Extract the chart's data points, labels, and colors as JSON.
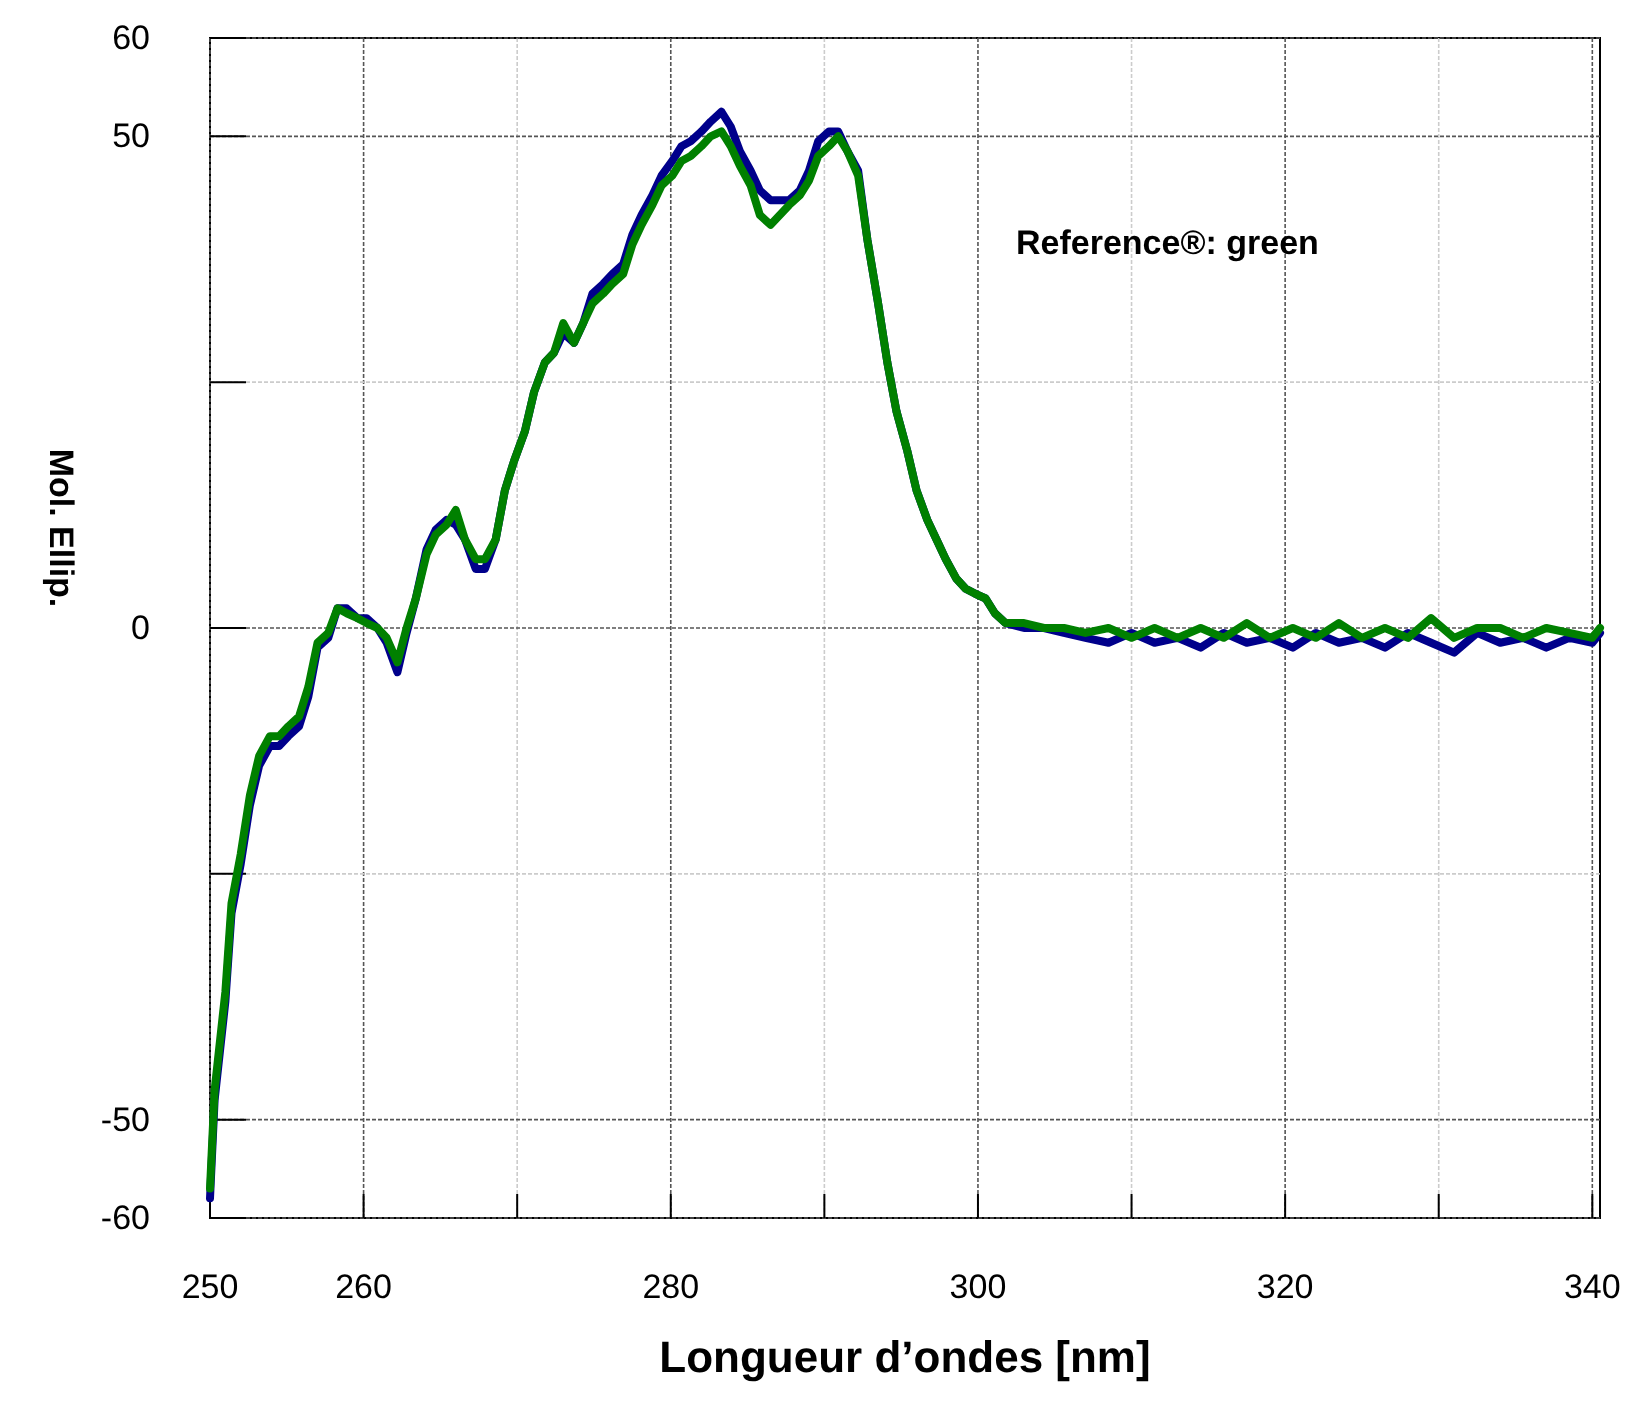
{
  "chart_data": {
    "type": "line",
    "xlabel": "Longueur d’ondes [nm]",
    "ylabel": "Mol. Ellip.",
    "annotations": [
      "Reference®: green"
    ],
    "xlim": [
      250,
      340.5
    ],
    "ylim": [
      -60,
      60
    ],
    "xticks": [
      250,
      260,
      {
        "value": 270,
        "label": null
      },
      280,
      {
        "value": 290,
        "label": null
      },
      300,
      {
        "value": 310,
        "label": null
      },
      320,
      {
        "value": 330,
        "label": null
      },
      340
    ],
    "yticks": [
      -60,
      -50,
      {
        "value": -25,
        "label": null
      },
      0,
      {
        "value": 25,
        "label": null
      },
      50,
      60
    ],
    "grid": true,
    "line_style": "solid",
    "marker": "none",
    "x": [
      250,
      250.3,
      251,
      251.4,
      252,
      252.6,
      253.2,
      253.9,
      254.5,
      255.1,
      255.8,
      256.4,
      257,
      257.7,
      258.3,
      258.9,
      259.6,
      260.2,
      260.9,
      261.5,
      262.2,
      262.8,
      263.4,
      264.1,
      264.7,
      265.4,
      266,
      266.6,
      267.3,
      267.9,
      268.6,
      269.2,
      269.8,
      270.5,
      271.1,
      271.8,
      272.4,
      273,
      273.7,
      274.3,
      274.9,
      275.6,
      276.2,
      276.9,
      277.5,
      278.1,
      278.8,
      279.4,
      280.1,
      280.7,
      281.3,
      282,
      282.6,
      283.3,
      283.9,
      284.5,
      285.2,
      285.8,
      286.5,
      287.1,
      287.7,
      288.4,
      289,
      289.6,
      290.3,
      290.9,
      291.5,
      292.2,
      292.8,
      293.5,
      294.1,
      294.7,
      295.4,
      296,
      296.7,
      297.3,
      297.9,
      298.6,
      299.2,
      299.8,
      300.5,
      301.1,
      301.8,
      303,
      304.3,
      305.6,
      307,
      308.5,
      310,
      311.5,
      313,
      314.5,
      316,
      317.5,
      319,
      320.5,
      322,
      323.5,
      325,
      326.5,
      328,
      329.5,
      331,
      332.5,
      334,
      335.5,
      337,
      338.5,
      340,
      340.5
    ],
    "series": [
      {
        "color": "#00008b",
        "values": [
          -58,
          -48,
          -38,
          -29,
          -24,
          -18,
          -14,
          -12,
          -12,
          -11,
          -10,
          -7,
          -2,
          -1,
          2,
          2,
          1,
          1,
          0,
          -1.5,
          -4.5,
          -0.5,
          3,
          8,
          10,
          11,
          10.5,
          9,
          6,
          6,
          9,
          14,
          17,
          20,
          24,
          27,
          28,
          30,
          29,
          31,
          34,
          35,
          36,
          37,
          40,
          42,
          44,
          46,
          47.5,
          49,
          49.5,
          50.5,
          51.5,
          52.5,
          51,
          48.5,
          46.5,
          44.5,
          43.5,
          43.5,
          43.5,
          44.5,
          46.5,
          49.5,
          50.5,
          50.5,
          48.5,
          46.5,
          39.5,
          33,
          27,
          22,
          18,
          14,
          11,
          9,
          7,
          5,
          4,
          3.5,
          3,
          1.5,
          0.5,
          0,
          0,
          -0.5,
          -1,
          -1.5,
          -0.5,
          -1.5,
          -1,
          -2,
          -0.5,
          -1.5,
          -1,
          -2,
          -0.5,
          -1.5,
          -1,
          -2,
          -0.5,
          -1.5,
          -2.5,
          -0.5,
          -1.5,
          -1,
          -2,
          -1,
          -1.5,
          -0.5
        ]
      },
      {
        "color": "#008000",
        "values": [
          -57,
          -47,
          -37,
          -28,
          -23,
          -17,
          -13,
          -11,
          -11,
          -10,
          -9,
          -6,
          -1.5,
          -0.5,
          2,
          1.5,
          1,
          0.5,
          0,
          -1,
          -3.5,
          0,
          3,
          7.5,
          9.5,
          10.5,
          12,
          9,
          7,
          7,
          9,
          14,
          17,
          20,
          24,
          27,
          28,
          31,
          29,
          31,
          33,
          34,
          35,
          36,
          39,
          41,
          43,
          45,
          46,
          47.5,
          48,
          49,
          50,
          50.5,
          49,
          47,
          45,
          42,
          41,
          42,
          43,
          44,
          45.5,
          48,
          49,
          50,
          48.5,
          46,
          39.5,
          33,
          27,
          22,
          18,
          14,
          11,
          9,
          7,
          5,
          4,
          3.5,
          3,
          1.5,
          0.5,
          0.5,
          0,
          0,
          -0.5,
          0,
          -1,
          0,
          -1,
          0,
          -1,
          0.5,
          -1,
          0,
          -1,
          0.5,
          -1,
          0,
          -1,
          1,
          -1,
          0,
          0,
          -1,
          0,
          -0.5,
          -1,
          0
        ]
      }
    ]
  }
}
